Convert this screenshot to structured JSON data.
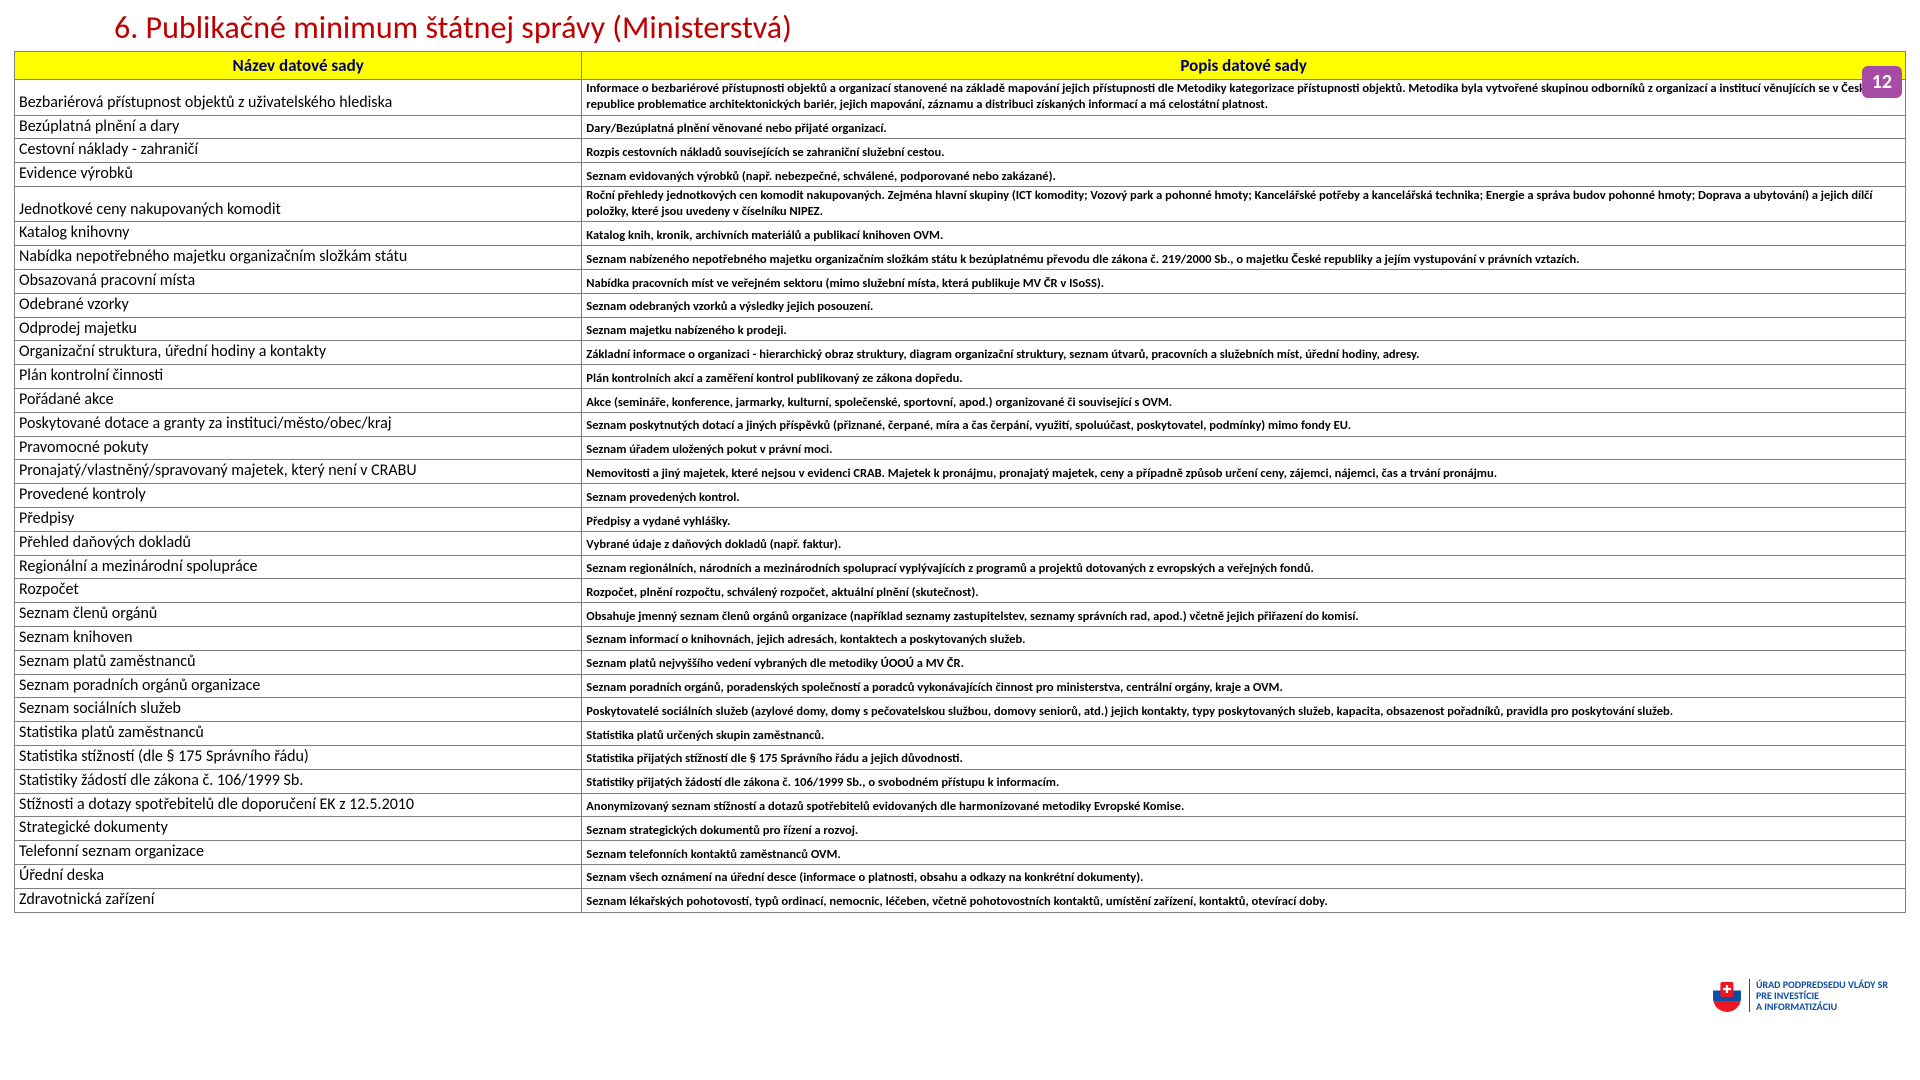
{
  "title": "6. Publikačné minimum štátnej správy (Ministerstvá)",
  "page_number": "12",
  "columns": [
    "Název datové sady",
    "Popis datové sady"
  ],
  "header_bg": "#ffff00",
  "header_fg": "#000066",
  "title_color": "#c00000",
  "border_color": "#808080",
  "logo": {
    "line1": "ÚRAD PODPREDSEDU VLÁDY SR",
    "line2": "PRE INVESTÍCIE",
    "line3": "A INFORMATIZÁCIU"
  },
  "rows": [
    {
      "name": "Bezbariérová přístupnost objektů z uživatelského hlediska",
      "desc": "Informace o bezbariérové přístupnosti objektů a organizací stanovené na základě mapování jejich přístupnosti dle Metodiky kategorizace přístupnosti objektů. Metodika byla vytvořené skupinou odborníků z organizací a institucí věnujících se v České republice problematice architektonických bariér, jejich mapování, záznamu a distribuci získaných informací a má celostátní platnost."
    },
    {
      "name": "Bezúplatná plnění a dary",
      "desc": "Dary/Bezúplatná plnění věnované nebo přijaté organizací."
    },
    {
      "name": "Cestovní náklady - zahraničí",
      "desc": "Rozpis cestovních nákladů souvisejících se zahraniční služební cestou."
    },
    {
      "name": "Evidence výrobků",
      "desc": "Seznam evidovaných výrobků (např. nebezpečné, schválené, podporované nebo zakázané)."
    },
    {
      "name": "Jednotkové ceny nakupovaných komodit",
      "desc": "Roční přehledy jednotkových cen komodit nakupovaných. Zejména hlavní skupiny (ICT komodity; Vozový park a pohonné hmoty; Kancelářské potřeby a kancelářská technika; Energie a správa budov pohonné hmoty; Doprava a ubytování) a jejich dílčí položky, které jsou uvedeny v číselníku NIPEZ."
    },
    {
      "name": "Katalog knihovny",
      "desc": "Katalog knih, kronik, archivních materiálů a publikací knihoven OVM."
    },
    {
      "name": "Nabídka nepotřebného majetku organizačním složkám státu",
      "desc": "Seznam nabízeného nepotřebného majetku organizačním složkám státu k bezúplatnému převodu dle zákona č. 219/2000 Sb., o majetku České republiky a jejím vystupování v právních vztazích."
    },
    {
      "name": "Obsazovaná pracovní místa",
      "desc": "Nabídka pracovních míst ve veřejném sektoru (mimo služební místa, která publikuje MV ČR v ISoSS)."
    },
    {
      "name": "Odebrané vzorky",
      "desc": "Seznam odebraných vzorků a výsledky jejich posouzení."
    },
    {
      "name": "Odprodej majetku",
      "desc": "Seznam majetku nabízeného k prodeji."
    },
    {
      "name": "Organizační struktura, úřední hodiny a kontakty",
      "desc": "Základní informace o organizaci - hierarchický obraz struktury, diagram organizační struktury, seznam útvarů, pracovních a služebních míst, úřední hodiny, adresy."
    },
    {
      "name": "Plán kontrolní činnosti",
      "desc": "Plán kontrolních akcí a zaměření kontrol publikovaný ze zákona dopředu."
    },
    {
      "name": "Pořádané akce",
      "desc": "Akce (semináře, konference, jarmarky, kulturní, společenské, sportovní, apod.) organizované či související s OVM."
    },
    {
      "name": "Poskytované dotace a granty za instituci/město/obec/kraj",
      "desc": "Seznam poskytnutých dotací a jiných příspěvků (přiznané, čerpané, míra a čas čerpání, využití, spoluúčast, poskytovatel, podmínky) mimo fondy EU."
    },
    {
      "name": "Pravomocné pokuty",
      "desc": "Seznam úřadem uložených pokut v právní moci."
    },
    {
      "name": "Pronajatý/vlastněný/spravovaný majetek, který není v CRABU",
      "desc": "Nemovitosti a jiný majetek, které nejsou v evidenci CRAB. Majetek k pronájmu, pronajatý majetek, ceny a případně způsob určení ceny, zájemci, nájemci, čas a trvání pronájmu."
    },
    {
      "name": "Provedené kontroly",
      "desc": "Seznam provedených kontrol."
    },
    {
      "name": "Předpisy",
      "desc": "Předpisy a vydané vyhlášky."
    },
    {
      "name": "Přehled daňových dokladů",
      "desc": "Vybrané údaje z daňových dokladů (např. faktur)."
    },
    {
      "name": "Regionální a mezinárodní spolupráce",
      "desc": "Seznam regionálních, národních a mezinárodních spoluprací vyplývajících z programů a projektů dotovaných z evropských a veřejných fondů."
    },
    {
      "name": "Rozpočet",
      "desc": "Rozpočet, plnění rozpočtu, schválený rozpočet, aktuální plnění (skutečnost)."
    },
    {
      "name": "Seznam členů orgánů",
      "desc": "Obsahuje jmenný seznam členů orgánů organizace (například seznamy zastupitelstev, seznamy správních rad, apod.) včetně jejich přiřazení do komisí."
    },
    {
      "name": "Seznam knihoven",
      "desc": "Seznam informací o knihovnách, jejich adresách, kontaktech a poskytovaných služeb."
    },
    {
      "name": "Seznam platů zaměstnanců",
      "desc": "Seznam platů nejvyššího vedení vybraných dle metodiky ÚOOÚ a MV ČR."
    },
    {
      "name": "Seznam poradních orgánů organizace",
      "desc": "Seznam poradních orgánů,   poradenských společností a poradců vykonávajících činnost pro ministerstva, centrální orgány, kraje a OVM."
    },
    {
      "name": "Seznam sociálních služeb",
      "desc": "Poskytovatelé sociálních služeb (azylové domy, domy s pečovatelskou službou, domovy seniorů, atd.) jejich kontakty, typy poskytovaných služeb, kapacita, obsazenost pořadníků, pravidla pro poskytování služeb."
    },
    {
      "name": "Statistika platů zaměstnanců",
      "desc": "Statistika platů určených skupin zaměstnanců."
    },
    {
      "name": "Statistika stížností (dle § 175 Správního řádu)",
      "desc": "Statistika přijatých stížností dle § 175 Správního řádu a jejich důvodnosti."
    },
    {
      "name": "Statistiky žádostí dle zákona č. 106/1999 Sb.",
      "desc": "Statistiky přijatých žádostí dle zákona č. 106/1999 Sb., o svobodném přístupu k informacím."
    },
    {
      "name": "Stížnosti a dotazy spotřebitelů dle doporučení EK z 12.5.2010",
      "desc": "Anonymizovaný seznam stížností a dotazů spotřebitelů evidovaných dle harmonizované metodiky Evropské Komise."
    },
    {
      "name": "Strategické dokumenty",
      "desc": "Seznam strategických dokumentů pro řízení a rozvoj."
    },
    {
      "name": "Telefonní seznam organizace",
      "desc": "Seznam telefonních kontaktů zaměstnanců OVM."
    },
    {
      "name": "Úřední deska",
      "desc": "Seznam všech oznámení na úřední desce (informace o platnosti, obsahu a odkazy na konkrétní dokumenty)."
    },
    {
      "name": "Zdravotnická zařízení",
      "desc": "Seznam lékařských pohotovostí, typů ordinací, nemocnic, léčeben, včetně pohotovostních kontaktů, umístění zařízení, kontaktů, otevírací doby."
    }
  ]
}
